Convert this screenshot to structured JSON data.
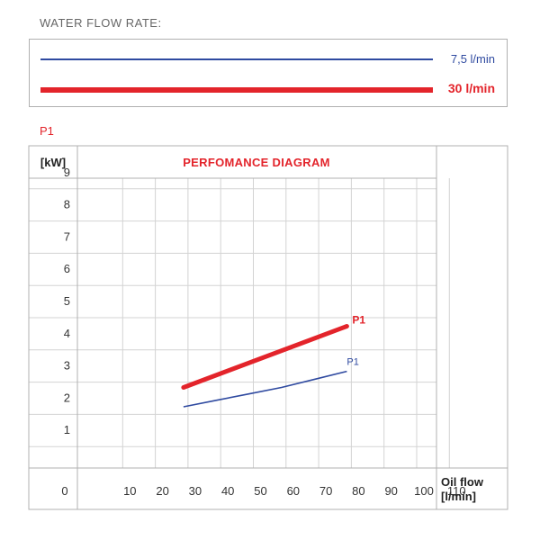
{
  "heading": "WATER FLOW RATE:",
  "corner_tag": "P1",
  "colors": {
    "blue": "#2f4aa0",
    "red": "#e3242b"
  },
  "legend": [
    {
      "label": "7,5 l/min",
      "style": "thin",
      "color": "#2f4aa0"
    },
    {
      "label": "30 l/min",
      "style": "thick",
      "color": "#e3242b"
    }
  ],
  "chart_data": {
    "type": "line",
    "title": "PERFOMANCE DIAGRAM",
    "ylabel": "[kW]",
    "xlabel_line1": "Oil flow",
    "xlabel_line2": "[l/min]",
    "origin_label": "0",
    "x_ticks": [
      "10",
      "20",
      "30",
      "40",
      "50",
      "60",
      "70",
      "80",
      "90",
      "100",
      "110"
    ],
    "y_ticks": [
      "1",
      "2",
      "3",
      "4",
      "5",
      "6",
      "7",
      "8",
      "9"
    ],
    "xlim": [
      0,
      110
    ],
    "ylim": [
      0,
      9
    ],
    "grid": true,
    "series": [
      {
        "name": "P1",
        "water_flow": "30 l/min",
        "color": "#e3242b",
        "style": "thick",
        "x": [
          30,
          80
        ],
        "y": [
          2.5,
          4.4
        ]
      },
      {
        "name": "P1",
        "water_flow": "7,5 l/min",
        "color": "#2f4aa0",
        "style": "thin",
        "x": [
          30,
          40,
          50,
          60,
          70,
          80
        ],
        "y": [
          1.9,
          2.1,
          2.3,
          2.5,
          2.75,
          3.0
        ]
      }
    ]
  }
}
